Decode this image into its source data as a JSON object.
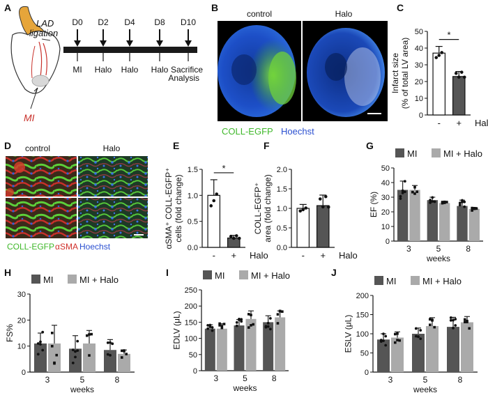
{
  "panel_letters": [
    "A",
    "B",
    "C",
    "D",
    "E",
    "F",
    "G",
    "H",
    "I",
    "J"
  ],
  "timeline": {
    "days": [
      "D0",
      "D2",
      "D4",
      "D8",
      "D10"
    ],
    "events": [
      "MI",
      "Halo",
      "Halo",
      "Halo",
      "Sacrifice"
    ],
    "analysis": "Analysis",
    "lad": "LAD",
    "ligation": "ligation",
    "mi_label": "MI"
  },
  "micrographs_b": {
    "control": "control",
    "halo": "Halo",
    "legend_green": "COLL-EGFP",
    "legend_blue": "Hoechst"
  },
  "micrographs_d": {
    "control": "control",
    "halo": "Halo",
    "legend_green": "COLL-EGFP",
    "legend_red": "αSMA",
    "legend_blue": "Hoechst"
  },
  "common": {
    "minus": "-",
    "plus": "+",
    "halo": "Halo",
    "weeks": "weeks",
    "star": "*"
  },
  "legend": {
    "mi": "MI",
    "mi_halo": "MI + Halo",
    "color_mi": "#555555",
    "color_halo": "#aaaaaa"
  },
  "chart_data": [
    {
      "panel": "C",
      "type": "bar",
      "ylabel_1": "Infarct size",
      "ylabel_2": "(% of total LV area)",
      "categories": [
        "-",
        "+"
      ],
      "values": [
        37,
        23
      ],
      "errors": [
        4,
        3
      ],
      "ylim": [
        0,
        50
      ],
      "yticks": [
        0,
        10,
        20,
        30,
        40,
        50
      ],
      "significance": "*"
    },
    {
      "panel": "E",
      "type": "bar",
      "ylabel_1": "αSMA⁺ COLL-EGFP⁺",
      "ylabel_2": "cells (fold change)",
      "categories": [
        "-",
        "+"
      ],
      "values": [
        1.0,
        0.18
      ],
      "errors": [
        0.3,
        0.05
      ],
      "ylim": [
        0,
        1.5
      ],
      "yticks": [
        0.0,
        0.5,
        1.0,
        1.5
      ],
      "significance": "*"
    },
    {
      "panel": "F",
      "type": "bar",
      "ylabel_1": "COLL-EGFP⁺",
      "ylabel_2": "area (fold change)",
      "categories": [
        "-",
        "+"
      ],
      "values": [
        1.0,
        1.07
      ],
      "errors": [
        0.1,
        0.27
      ],
      "ylim": [
        0,
        2.0
      ],
      "yticks": [
        0.0,
        0.5,
        1.0,
        1.5,
        2.0
      ]
    },
    {
      "panel": "G",
      "type": "bar",
      "ylabel": "EF (%)",
      "xlabel": "weeks",
      "categories": [
        "3",
        "5",
        "8"
      ],
      "series": [
        {
          "name": "MI",
          "values": [
            35,
            28,
            24
          ],
          "errors": [
            6,
            2,
            4
          ]
        },
        {
          "name": "MI + Halo",
          "values": [
            35,
            26,
            22
          ],
          "errors": [
            3,
            1,
            1
          ]
        }
      ],
      "ylim": [
        0,
        50
      ],
      "yticks": [
        0,
        10,
        20,
        30,
        40,
        50
      ]
    },
    {
      "panel": "H",
      "type": "bar",
      "ylabel": "FS%",
      "xlabel": "weeks",
      "categories": [
        "3",
        "5",
        "8"
      ],
      "series": [
        {
          "name": "MI",
          "values": [
            11,
            9,
            8.5
          ],
          "errors": [
            4,
            5,
            4
          ]
        },
        {
          "name": "MI + Halo",
          "values": [
            11,
            11,
            7
          ],
          "errors": [
            7,
            5,
            1.5
          ]
        }
      ],
      "ylim": [
        0,
        30
      ],
      "yticks": [
        0,
        10,
        20,
        30
      ]
    },
    {
      "panel": "I",
      "type": "bar",
      "ylabel": "EDLV (μL)",
      "xlabel": "weeks",
      "categories": [
        "3",
        "5",
        "8"
      ],
      "series": [
        {
          "name": "MI",
          "values": [
            130,
            140,
            150
          ],
          "errors": [
            12,
            18,
            20
          ]
        },
        {
          "name": "MI + Halo",
          "values": [
            130,
            160,
            165
          ],
          "errors": [
            15,
            25,
            20
          ]
        }
      ],
      "ylim": [
        0,
        250
      ],
      "yticks": [
        0,
        50,
        100,
        150,
        200,
        250
      ]
    },
    {
      "panel": "J",
      "type": "bar",
      "ylabel": "ESLV (μL)",
      "xlabel": "weeks",
      "categories": [
        "3",
        "5",
        "8"
      ],
      "series": [
        {
          "name": "MI",
          "values": [
            85,
            100,
            118
          ],
          "errors": [
            15,
            15,
            25
          ]
        },
        {
          "name": "MI + Halo",
          "values": [
            90,
            120,
            130
          ],
          "errors": [
            15,
            22,
            15
          ]
        }
      ],
      "ylim": [
        0,
        200
      ],
      "yticks": [
        0,
        50,
        100,
        150,
        200
      ]
    }
  ]
}
